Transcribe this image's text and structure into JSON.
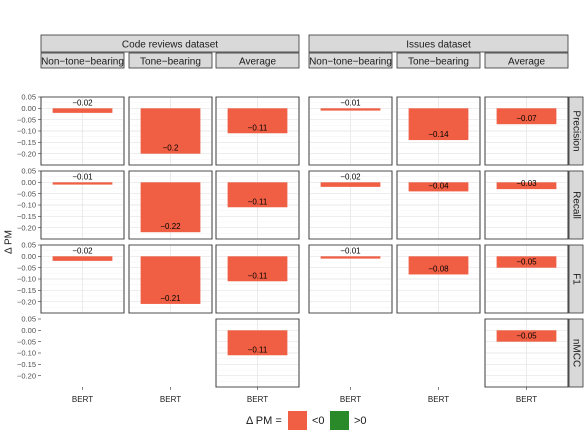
{
  "chart_data": {
    "type": "bar",
    "ylabel": "Δ PM",
    "ylim": [
      -0.25,
      0.05
    ],
    "yticks": [
      0.05,
      0.0,
      -0.05,
      -0.1,
      -0.15,
      -0.2
    ],
    "ytick_labels": [
      "0.05",
      "0.00",
      "−0.05",
      "−0.10",
      "−0.15",
      "−0.20"
    ],
    "category": "BERT",
    "datasets": [
      "Code reviews dataset",
      "Issues dataset"
    ],
    "subsets": [
      "Non−tone−bearing",
      "Tone−bearing",
      "Average"
    ],
    "metrics": [
      "Precision",
      "Recall",
      "F1",
      "nMCC"
    ],
    "legend": {
      "title": "Δ PM =",
      "items": [
        {
          "label": "<0",
          "color": "#f05f44"
        },
        {
          "label": ">0",
          "color": "#2a8a2a"
        }
      ]
    },
    "grid": true,
    "panels": [
      {
        "metric": "Precision",
        "dataset": "Code reviews dataset",
        "subset": "Non−tone−bearing",
        "value": -0.02,
        "label": "−0.02"
      },
      {
        "metric": "Precision",
        "dataset": "Code reviews dataset",
        "subset": "Tone−bearing",
        "value": -0.2,
        "label": "−0.2"
      },
      {
        "metric": "Precision",
        "dataset": "Code reviews dataset",
        "subset": "Average",
        "value": -0.11,
        "label": "−0.11"
      },
      {
        "metric": "Precision",
        "dataset": "Issues dataset",
        "subset": "Non−tone−bearing",
        "value": -0.01,
        "label": "−0.01"
      },
      {
        "metric": "Precision",
        "dataset": "Issues dataset",
        "subset": "Tone−bearing",
        "value": -0.14,
        "label": "−0.14"
      },
      {
        "metric": "Precision",
        "dataset": "Issues dataset",
        "subset": "Average",
        "value": -0.07,
        "label": "−0.07"
      },
      {
        "metric": "Recall",
        "dataset": "Code reviews dataset",
        "subset": "Non−tone−bearing",
        "value": -0.01,
        "label": "−0.01"
      },
      {
        "metric": "Recall",
        "dataset": "Code reviews dataset",
        "subset": "Tone−bearing",
        "value": -0.22,
        "label": "−0.22"
      },
      {
        "metric": "Recall",
        "dataset": "Code reviews dataset",
        "subset": "Average",
        "value": -0.11,
        "label": "−0.11"
      },
      {
        "metric": "Recall",
        "dataset": "Issues dataset",
        "subset": "Non−tone−bearing",
        "value": -0.02,
        "label": "−0.02"
      },
      {
        "metric": "Recall",
        "dataset": "Issues dataset",
        "subset": "Tone−bearing",
        "value": -0.04,
        "label": "−0.04"
      },
      {
        "metric": "Recall",
        "dataset": "Issues dataset",
        "subset": "Average",
        "value": -0.03,
        "label": "−0.03"
      },
      {
        "metric": "F1",
        "dataset": "Code reviews dataset",
        "subset": "Non−tone−bearing",
        "value": -0.02,
        "label": "−0.02"
      },
      {
        "metric": "F1",
        "dataset": "Code reviews dataset",
        "subset": "Tone−bearing",
        "value": -0.21,
        "label": "−0.21"
      },
      {
        "metric": "F1",
        "dataset": "Code reviews dataset",
        "subset": "Average",
        "value": -0.11,
        "label": "−0.11"
      },
      {
        "metric": "F1",
        "dataset": "Issues dataset",
        "subset": "Non−tone−bearing",
        "value": -0.01,
        "label": "−0.01"
      },
      {
        "metric": "F1",
        "dataset": "Issues dataset",
        "subset": "Tone−bearing",
        "value": -0.08,
        "label": "−0.08"
      },
      {
        "metric": "F1",
        "dataset": "Issues dataset",
        "subset": "Average",
        "value": -0.05,
        "label": "−0.05"
      },
      {
        "metric": "nMCC",
        "dataset": "Code reviews dataset",
        "subset": "Average",
        "value": -0.11,
        "label": "−0.11"
      },
      {
        "metric": "nMCC",
        "dataset": "Issues dataset",
        "subset": "Average",
        "value": -0.05,
        "label": "−0.05"
      }
    ]
  }
}
